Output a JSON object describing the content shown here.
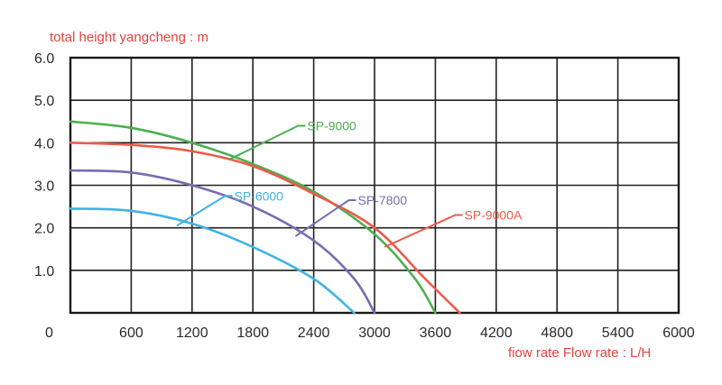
{
  "chart_data": {
    "type": "line",
    "ylabel": "total height yangcheng : m",
    "xlabel": "fiow rate Flow rate : L/H",
    "xlim": [
      0,
      6000
    ],
    "ylim": [
      0,
      6
    ],
    "x_ticks": [
      "0",
      "600",
      "1200",
      "1800",
      "2400",
      "3000",
      "3600",
      "4200",
      "4800",
      "5400",
      "6000"
    ],
    "y_ticks": [
      "1.0",
      "2.0",
      "3.0",
      "4.0",
      "5.0",
      "6.0"
    ],
    "grid": true,
    "series": [
      {
        "name": "SP-9000",
        "color": "#4caf50",
        "points": [
          [
            0,
            4.5
          ],
          [
            600,
            4.35
          ],
          [
            1200,
            4.0
          ],
          [
            1800,
            3.5
          ],
          [
            2400,
            2.85
          ],
          [
            3000,
            1.85
          ],
          [
            3400,
            0.8
          ],
          [
            3600,
            0
          ]
        ]
      },
      {
        "name": "SP-9000A",
        "color": "#ee5a4a",
        "points": [
          [
            0,
            4.0
          ],
          [
            600,
            3.95
          ],
          [
            1200,
            3.8
          ],
          [
            1800,
            3.45
          ],
          [
            2400,
            2.8
          ],
          [
            3000,
            2.0
          ],
          [
            3500,
            0.8
          ],
          [
            3840,
            0
          ]
        ]
      },
      {
        "name": "SP-7800",
        "color": "#7a6bb0",
        "points": [
          [
            0,
            3.35
          ],
          [
            600,
            3.3
          ],
          [
            1200,
            3.0
          ],
          [
            1800,
            2.5
          ],
          [
            2400,
            1.7
          ],
          [
            2800,
            0.8
          ],
          [
            3000,
            0
          ]
        ]
      },
      {
        "name": "SP-6000",
        "color": "#3fb4e4",
        "points": [
          [
            0,
            2.45
          ],
          [
            600,
            2.4
          ],
          [
            1200,
            2.1
          ],
          [
            1800,
            1.55
          ],
          [
            2400,
            0.8
          ],
          [
            2800,
            0
          ]
        ]
      }
    ],
    "annotations": [
      {
        "text": "SP-9000",
        "color": "#4caf50",
        "x": 2300,
        "y": 4.4,
        "pointer_x": 1560,
        "pointer_y": 3.6
      },
      {
        "text": "SP-9000A",
        "color": "#ee5a4a",
        "x": 3850,
        "y": 2.3,
        "pointer_x": 3100,
        "pointer_y": 1.55
      },
      {
        "text": "SP-7800",
        "color": "#7a6bb0",
        "x": 2800,
        "y": 2.65,
        "pointer_x": 2220,
        "pointer_y": 1.8
      },
      {
        "text": "SP-6000",
        "color": "#3fb4e4",
        "x": 1580,
        "y": 2.75,
        "pointer_x": 1050,
        "pointer_y": 2.05
      }
    ]
  }
}
